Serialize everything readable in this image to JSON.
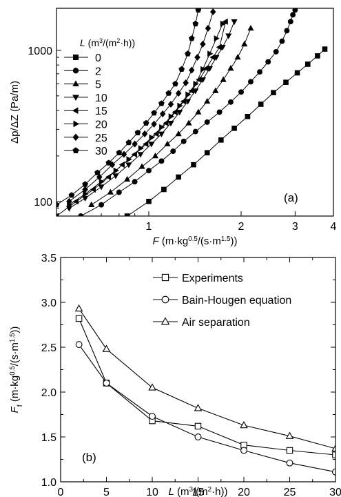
{
  "chart_data": [
    {
      "panel": "(a)",
      "type": "line",
      "xlabel": {
        "base": "F",
        "unit": "(m·kg",
        "sup1": "0.5",
        "mid": "/(s·m",
        "sup2": "1.5",
        "end": "))"
      },
      "ylabel": "Δp/ΔZ (Pa/m)",
      "xscale": "log",
      "yscale": "log",
      "xlim": [
        0.5,
        4
      ],
      "ylim": [
        80,
        1900
      ],
      "xticks": [
        1,
        2,
        3,
        4
      ],
      "yticks": [
        100,
        1000
      ],
      "legend": {
        "title": {
          "base": "L",
          "unit": "(m",
          "sup1": "3",
          "mid": "/(m",
          "sup2": "2",
          "end": "·h))"
        },
        "placement": "top-left"
      },
      "series": [
        {
          "name": "0",
          "marker": "square",
          "x": [
            0.85,
            1.0,
            1.12,
            1.25,
            1.4,
            1.55,
            1.72,
            1.9,
            2.1,
            2.32,
            2.55,
            2.8,
            3.05,
            3.3,
            3.55,
            3.75
          ],
          "y": [
            80,
            100,
            120,
            145,
            175,
            210,
            255,
            305,
            365,
            440,
            525,
            615,
            710,
            810,
            920,
            1020
          ]
        },
        {
          "name": "2",
          "marker": "circle",
          "x": [
            0.6,
            0.7,
            0.8,
            0.9,
            1.0,
            1.1,
            1.2,
            1.3,
            1.42,
            1.55,
            1.7,
            1.85,
            2.0,
            2.15,
            2.3,
            2.45,
            2.6,
            2.72,
            2.82,
            2.9,
            2.95,
            3.0
          ],
          "y": [
            80,
            95,
            115,
            135,
            160,
            185,
            215,
            250,
            290,
            335,
            390,
            455,
            530,
            620,
            720,
            840,
            980,
            1150,
            1350,
            1550,
            1720,
            1850
          ]
        },
        {
          "name": "5",
          "marker": "triangle-up",
          "x": [
            0.65,
            0.75,
            0.85,
            0.95,
            1.05,
            1.15,
            1.25,
            1.35,
            1.45,
            1.55,
            1.65,
            1.75,
            1.85,
            1.95,
            2.05,
            2.15
          ],
          "y": [
            95,
            115,
            140,
            170,
            200,
            240,
            280,
            330,
            390,
            460,
            540,
            640,
            760,
            900,
            1100,
            1400
          ]
        },
        {
          "name": "10",
          "marker": "triangle-down",
          "x": [
            0.55,
            0.62,
            0.7,
            0.78,
            0.86,
            0.94,
            1.02,
            1.1,
            1.18,
            1.26,
            1.34,
            1.42,
            1.5,
            1.58,
            1.66,
            1.74,
            1.82,
            1.9
          ],
          "y": [
            90,
            105,
            125,
            148,
            175,
            205,
            240,
            280,
            330,
            390,
            460,
            540,
            640,
            760,
            900,
            1050,
            1250,
            1550
          ]
        },
        {
          "name": "15",
          "marker": "triangle-left",
          "x": [
            0.5,
            0.58,
            0.66,
            0.74,
            0.82,
            0.9,
            0.98,
            1.06,
            1.14,
            1.22,
            1.3,
            1.38,
            1.46,
            1.54,
            1.62,
            1.7,
            1.78
          ],
          "y": [
            80,
            100,
            120,
            145,
            175,
            205,
            240,
            280,
            330,
            390,
            460,
            540,
            640,
            760,
            900,
            1050,
            1550
          ]
        },
        {
          "name": "20",
          "marker": "triangle-right",
          "x": [
            0.55,
            0.62,
            0.7,
            0.78,
            0.86,
            0.94,
            1.02,
            1.1,
            1.18,
            1.26,
            1.34,
            1.42,
            1.5,
            1.58,
            1.66,
            1.74
          ],
          "y": [
            95,
            112,
            135,
            160,
            190,
            225,
            265,
            310,
            365,
            430,
            510,
            600,
            750,
            950,
            1200,
            1500
          ]
        },
        {
          "name": "25",
          "marker": "diamond",
          "x": [
            0.55,
            0.62,
            0.69,
            0.76,
            0.83,
            0.9,
            0.97,
            1.04,
            1.11,
            1.18,
            1.25,
            1.32,
            1.38,
            1.44,
            1.5,
            1.56,
            1.62
          ],
          "y": [
            100,
            120,
            145,
            175,
            205,
            240,
            280,
            325,
            380,
            440,
            520,
            610,
            740,
            900,
            1100,
            1400,
            1800
          ]
        },
        {
          "name": "30",
          "marker": "pentagon",
          "x": [
            0.5,
            0.56,
            0.62,
            0.68,
            0.74,
            0.8,
            0.86,
            0.92,
            0.98,
            1.04,
            1.1,
            1.16,
            1.22,
            1.28,
            1.34,
            1.38,
            1.42,
            1.45
          ],
          "y": [
            95,
            110,
            130,
            155,
            180,
            210,
            245,
            285,
            330,
            385,
            445,
            520,
            600,
            750,
            950,
            1200,
            1500,
            1850
          ]
        }
      ],
      "grid": false
    },
    {
      "panel": "(b)",
      "type": "line",
      "xlabel": {
        "base": "L",
        "unit": "(m",
        "sup1": "3",
        "mid": "/(m",
        "sup2": "2",
        "end": "·h))"
      },
      "ylabel": {
        "base": "F",
        "sub": "f",
        "unit": "(m·kg",
        "sup1": "0.5",
        "mid": "/(s·m",
        "sup2": "1.5",
        "end": "))"
      },
      "xlim": [
        0,
        30
      ],
      "ylim": [
        1.0,
        3.5
      ],
      "xticks": [
        0,
        5,
        10,
        15,
        20,
        25,
        30
      ],
      "yticks": [
        1.0,
        1.5,
        2.0,
        2.5,
        3.0,
        3.5
      ],
      "x": [
        2,
        5,
        10,
        15,
        20,
        25,
        30
      ],
      "legend": {
        "placement": "top-right"
      },
      "series": [
        {
          "name": "Experiments",
          "marker": "open-square",
          "values": [
            2.82,
            2.1,
            1.68,
            1.62,
            1.41,
            1.35,
            1.3
          ]
        },
        {
          "name": "Bain-Hougen equation",
          "marker": "open-circle",
          "values": [
            2.53,
            2.1,
            1.73,
            1.5,
            1.35,
            1.21,
            1.11
          ]
        },
        {
          "name": "Air separation",
          "marker": "open-triangle",
          "values": [
            2.93,
            2.48,
            2.05,
            1.82,
            1.63,
            1.51,
            1.37
          ]
        }
      ],
      "grid": false
    }
  ]
}
